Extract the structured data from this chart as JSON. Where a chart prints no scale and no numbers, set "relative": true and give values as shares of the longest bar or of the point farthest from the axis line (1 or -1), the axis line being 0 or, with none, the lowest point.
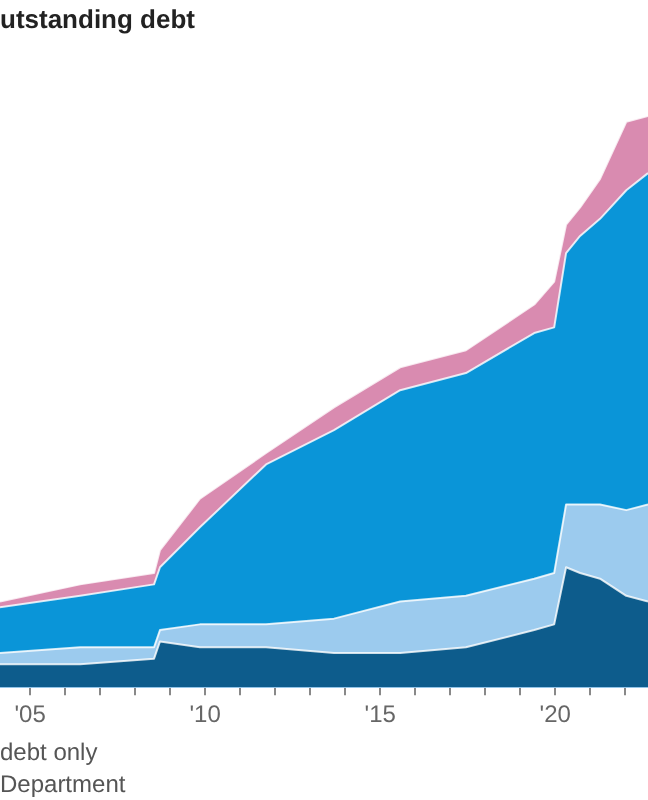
{
  "chart_data": {
    "type": "area",
    "title": "utstanding debt",
    "stacked": true,
    "relative": true,
    "x": [
      2004.14,
      2006.43,
      2008.54,
      2008.71,
      2009.85,
      2011.74,
      2013.68,
      2015.57,
      2017.45,
      2019.4,
      2019.97,
      2020.31,
      2020.71,
      2021.28,
      2022.03,
      2022.65
    ],
    "xlim": [
      2004.14,
      2022.65
    ],
    "xticks": [
      {
        "value": 2005,
        "label": "'05"
      },
      {
        "value": 2006,
        "label": null
      },
      {
        "value": 2007,
        "label": null
      },
      {
        "value": 2008,
        "label": null
      },
      {
        "value": 2009,
        "label": null
      },
      {
        "value": 2010,
        "label": "'10"
      },
      {
        "value": 2011,
        "label": null
      },
      {
        "value": 2012,
        "label": null
      },
      {
        "value": 2013,
        "label": null
      },
      {
        "value": 2014,
        "label": null
      },
      {
        "value": 2015,
        "label": "'15"
      },
      {
        "value": 2016,
        "label": null
      },
      {
        "value": 2017,
        "label": null
      },
      {
        "value": 2018,
        "label": null
      },
      {
        "value": 2019,
        "label": null
      },
      {
        "value": 2020,
        "label": "'20"
      },
      {
        "value": 2021,
        "label": null
      },
      {
        "value": 2022,
        "label": null
      }
    ],
    "series": [
      {
        "color": "#0d5c8c",
        "values": [
          0.04,
          0.04,
          0.05,
          0.08,
          0.07,
          0.07,
          0.06,
          0.06,
          0.07,
          0.1,
          0.11,
          0.21,
          0.2,
          0.19,
          0.16,
          0.15
        ]
      },
      {
        "color": "#9ccbee",
        "values": [
          0.02,
          0.03,
          0.02,
          0.02,
          0.04,
          0.04,
          0.06,
          0.09,
          0.09,
          0.09,
          0.09,
          0.11,
          0.12,
          0.13,
          0.15,
          0.17
        ]
      },
      {
        "color": "#0a95d8",
        "values": [
          0.08,
          0.09,
          0.11,
          0.11,
          0.17,
          0.28,
          0.33,
          0.37,
          0.39,
          0.43,
          0.43,
          0.44,
          0.47,
          0.5,
          0.56,
          0.58
        ]
      },
      {
        "color": "#d98bb0",
        "values": [
          0.01,
          0.02,
          0.02,
          0.03,
          0.05,
          0.02,
          0.04,
          0.04,
          0.04,
          0.05,
          0.08,
          0.05,
          0.05,
          0.07,
          0.12,
          0.1
        ]
      }
    ],
    "annotations": [
      "debt only",
      "Department"
    ]
  }
}
